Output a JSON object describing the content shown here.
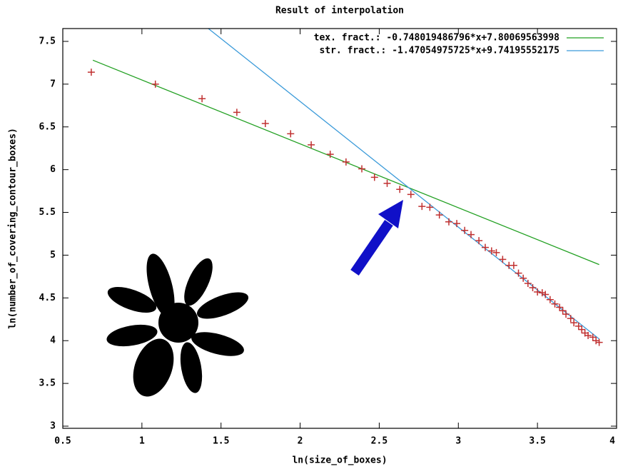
{
  "chart_data": {
    "type": "scatter",
    "title": "Result of interpolation",
    "x_label": "ln(size_of_boxes)",
    "y_label": "ln(number_of_covering_contour_boxes)",
    "xlim": [
      0.5,
      4
    ],
    "ylim": [
      2.975,
      7.65
    ],
    "xticks": [
      0.5,
      1,
      1.5,
      2,
      2.5,
      3,
      3.5,
      4
    ],
    "yticks": [
      3,
      3.5,
      4,
      4.5,
      5,
      5.5,
      6,
      6.5,
      7,
      7.5
    ],
    "series": [
      {
        "name": "tex. fract.: -0.748019486796*x+7.80069563998",
        "type": "line",
        "color": "#22a022",
        "x": [
          0.69,
          3.89
        ],
        "values": [
          7.28,
          4.89
        ]
      },
      {
        "name": "str. fract.: -1.47054975725*x+9.74195552175",
        "type": "line",
        "color": "#3a9ad9",
        "x": [
          1.42,
          3.89
        ],
        "values": [
          7.65,
          4.02
        ]
      },
      {
        "type": "scatter",
        "color": "#c03030",
        "x": [
          0.68,
          1.085,
          1.38,
          1.6,
          1.78,
          1.94,
          2.07,
          2.19,
          2.29,
          2.39,
          2.47,
          2.55,
          2.63,
          2.7,
          2.77,
          2.82,
          2.88,
          2.94,
          2.99,
          3.04,
          3.08,
          3.13,
          3.17,
          3.21,
          3.24,
          3.28,
          3.32,
          3.35,
          3.38,
          3.41,
          3.44,
          3.47,
          3.5,
          3.53,
          3.55,
          3.58,
          3.61,
          3.64,
          3.66,
          3.68,
          3.71,
          3.73,
          3.76,
          3.78,
          3.8,
          3.82,
          3.85,
          3.87,
          3.89
        ],
        "values": [
          7.14,
          7.0,
          6.83,
          6.67,
          6.54,
          6.42,
          6.29,
          6.18,
          6.09,
          6.01,
          5.91,
          5.84,
          5.77,
          5.71,
          5.57,
          5.56,
          5.47,
          5.39,
          5.37,
          5.29,
          5.24,
          5.17,
          5.09,
          5.05,
          5.03,
          4.95,
          4.88,
          4.88,
          4.79,
          4.73,
          4.67,
          4.62,
          4.57,
          4.56,
          4.54,
          4.48,
          4.43,
          4.39,
          4.35,
          4.31,
          4.26,
          4.21,
          4.17,
          4.13,
          4.09,
          4.06,
          4.04,
          4.0,
          3.98
        ]
      }
    ]
  }
}
